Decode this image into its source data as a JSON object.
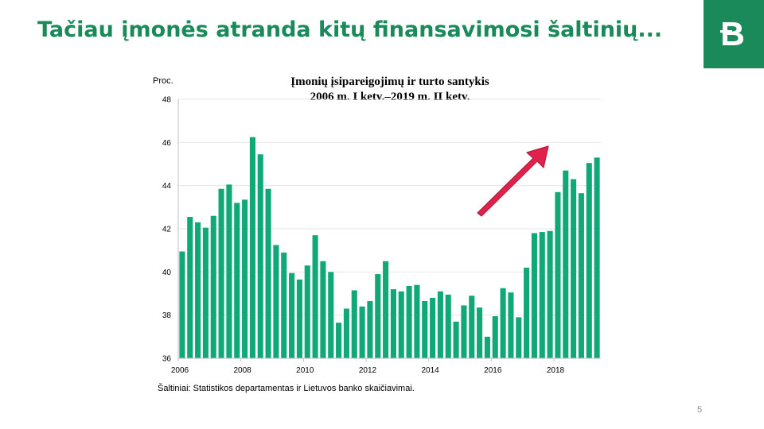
{
  "slide": {
    "title": "Tačiau įmonės atranda kitų finansavimosi šaltinių...",
    "page_number": "5",
    "brand_color": "#1a8a5a"
  },
  "logo": {
    "icon": "bank-of-lithuania-logo-icon"
  },
  "chart_data": {
    "type": "bar",
    "title_line1": "Įmonių įsipareigojimų  ir turto santykis",
    "title_line2": "2006 m. I ketv.–2019 m. II ketv.",
    "ylabel": "Proc.",
    "ylim": [
      36,
      48
    ],
    "yticks": [
      "36",
      "38",
      "40",
      "42",
      "44",
      "46",
      "48"
    ],
    "xticks": [
      "2006",
      "2008",
      "2010",
      "2012",
      "2014",
      "2016",
      "2018"
    ],
    "grid": true,
    "bar_color": "#11a878",
    "arrow_color": "#e0214c",
    "values": [
      40.95,
      42.55,
      42.3,
      42.05,
      42.6,
      43.85,
      44.05,
      43.2,
      43.35,
      46.25,
      45.45,
      43.85,
      41.25,
      40.9,
      39.95,
      39.65,
      40.3,
      41.7,
      40.5,
      40.0,
      37.65,
      38.3,
      39.15,
      38.4,
      38.65,
      39.9,
      40.5,
      39.2,
      39.1,
      39.35,
      39.4,
      38.65,
      38.8,
      39.1,
      38.95,
      37.7,
      38.45,
      38.9,
      38.35,
      37.0,
      37.95,
      39.25,
      39.05,
      37.9,
      40.2,
      41.8,
      41.85,
      41.9,
      43.7,
      44.7,
      44.3,
      43.65,
      45.05,
      45.3
    ]
  },
  "source": {
    "text": "Šaltiniai: Statistikos departamentas  ir Lietuvos banko skaičiavimai."
  }
}
